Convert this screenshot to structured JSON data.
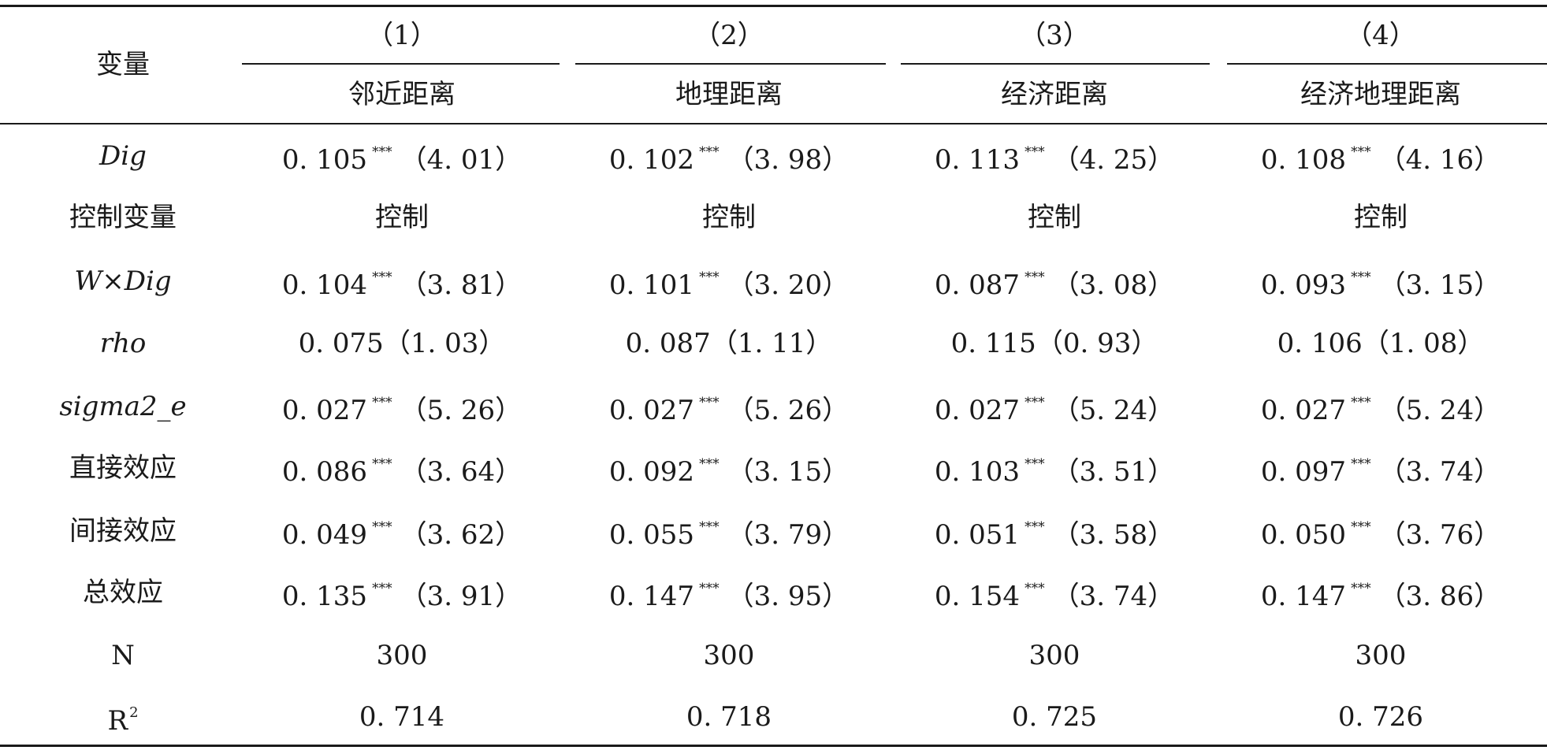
{
  "header": {
    "var_label": "变量",
    "col_numbers": [
      "（1）",
      "（2）",
      "（3）",
      "（4）"
    ],
    "col_names": [
      "邻近距离",
      "地理距离",
      "经济距离",
      "经济地理距离"
    ]
  },
  "rows": [
    {
      "label": "Dig",
      "italic": true,
      "cells": [
        {
          "value": "0. 105",
          "stars": "***",
          "stat": "（4. 01）"
        },
        {
          "value": "0. 102",
          "stars": "***",
          "stat": "（3. 98）"
        },
        {
          "value": "0. 113",
          "stars": "***",
          "stat": "（4. 25）"
        },
        {
          "value": "0. 108",
          "stars": "***",
          "stat": "（4. 16）"
        }
      ]
    },
    {
      "label": "控制变量",
      "italic": false,
      "cells": [
        {
          "value": "控制",
          "stars": "",
          "stat": ""
        },
        {
          "value": "控制",
          "stars": "",
          "stat": ""
        },
        {
          "value": "控制",
          "stars": "",
          "stat": ""
        },
        {
          "value": "控制",
          "stars": "",
          "stat": ""
        }
      ]
    },
    {
      "label": "W×Dig",
      "italic": true,
      "cells": [
        {
          "value": "0. 104",
          "stars": "***",
          "stat": "（3. 81）"
        },
        {
          "value": "0. 101",
          "stars": "***",
          "stat": "（3. 20）"
        },
        {
          "value": "0. 087",
          "stars": "***",
          "stat": "（3. 08）"
        },
        {
          "value": "0. 093",
          "stars": "***",
          "stat": "（3. 15）"
        }
      ]
    },
    {
      "label": "rho",
      "italic": true,
      "cells": [
        {
          "value": "0. 075",
          "stars": "",
          "stat": "（1. 03）"
        },
        {
          "value": "0. 087",
          "stars": "",
          "stat": "（1. 11）"
        },
        {
          "value": "0. 115",
          "stars": "",
          "stat": "（0. 93）"
        },
        {
          "value": "0. 106",
          "stars": "",
          "stat": "（1. 08）"
        }
      ]
    },
    {
      "label": "sigma2_e",
      "italic": true,
      "cells": [
        {
          "value": "0. 027",
          "stars": "***",
          "stat": "（5. 26）"
        },
        {
          "value": "0. 027",
          "stars": "***",
          "stat": "（5. 26）"
        },
        {
          "value": "0. 027",
          "stars": "***",
          "stat": "（5. 24）"
        },
        {
          "value": "0. 027",
          "stars": "***",
          "stat": "（5. 24）"
        }
      ]
    },
    {
      "label": "直接效应",
      "italic": false,
      "cells": [
        {
          "value": "0. 086",
          "stars": "***",
          "stat": "（3. 64）"
        },
        {
          "value": "0. 092",
          "stars": "***",
          "stat": "（3. 15）"
        },
        {
          "value": "0. 103",
          "stars": "***",
          "stat": "（3. 51）"
        },
        {
          "value": "0. 097",
          "stars": "***",
          "stat": "（3. 74）"
        }
      ]
    },
    {
      "label": "间接效应",
      "italic": false,
      "cells": [
        {
          "value": "0. 049",
          "stars": "***",
          "stat": "（3. 62）"
        },
        {
          "value": "0. 055",
          "stars": "***",
          "stat": "（3. 79）"
        },
        {
          "value": "0. 051",
          "stars": "***",
          "stat": "（3. 58）"
        },
        {
          "value": "0. 050",
          "stars": "***",
          "stat": "（3. 76）"
        }
      ]
    },
    {
      "label": "总效应",
      "italic": false,
      "cells": [
        {
          "value": "0. 135",
          "stars": "***",
          "stat": "（3. 91）"
        },
        {
          "value": "0. 147",
          "stars": "***",
          "stat": "（3. 95）"
        },
        {
          "value": "0. 154",
          "stars": "***",
          "stat": "（3. 74）"
        },
        {
          "value": "0. 147",
          "stars": "***",
          "stat": "（3. 86）"
        }
      ]
    },
    {
      "label": "N",
      "italic": false,
      "cells": [
        {
          "value": "300",
          "stars": "",
          "stat": ""
        },
        {
          "value": "300",
          "stars": "",
          "stat": ""
        },
        {
          "value": "300",
          "stars": "",
          "stat": ""
        },
        {
          "value": "300",
          "stars": "",
          "stat": ""
        }
      ]
    },
    {
      "label": "R",
      "label_sup": "2",
      "italic": false,
      "cells": [
        {
          "value": "0. 714",
          "stars": "",
          "stat": ""
        },
        {
          "value": "0. 718",
          "stars": "",
          "stat": ""
        },
        {
          "value": "0. 725",
          "stars": "",
          "stat": ""
        },
        {
          "value": "0. 726",
          "stars": "",
          "stat": ""
        }
      ]
    }
  ]
}
